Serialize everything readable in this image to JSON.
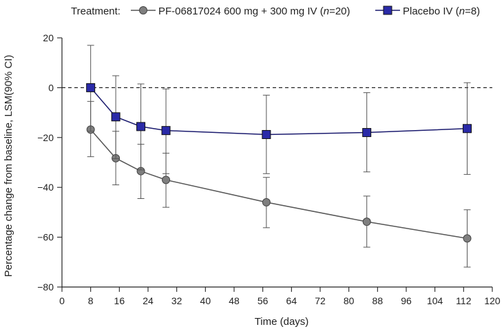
{
  "chart_data": {
    "type": "line",
    "title": "",
    "xlabel": "Time (days)",
    "ylabel": "Percentage change from baseline, LSM(90% CI)",
    "xlim": [
      0,
      120
    ],
    "ylim": [
      -80,
      20
    ],
    "xticks": [
      0,
      8,
      16,
      24,
      32,
      40,
      48,
      56,
      64,
      72,
      80,
      88,
      96,
      104,
      112,
      120
    ],
    "yticks": [
      20,
      0,
      -20,
      -40,
      -60,
      -80
    ],
    "reference_line": {
      "y": 0,
      "style": "dashed"
    },
    "legend": {
      "title": "Treatment:",
      "placement": "top",
      "entries": [
        {
          "prefix": "PF-06817024 600 mg + 300 mg IV (",
          "n_label": "n",
          "suffix": "=20)"
        },
        {
          "prefix": "Placebo IV (",
          "n_label": "n",
          "suffix": "=8)"
        }
      ]
    },
    "series": [
      {
        "name": "PF-06817024 600 mg + 300 mg IV (n=20)",
        "marker": "circle",
        "color": "#7f7f7f",
        "line_color": "#555555",
        "x": [
          8,
          15,
          22,
          29,
          57,
          85,
          113
        ],
        "y": [
          -16.8,
          -28.3,
          -33.5,
          -37.0,
          -46.0,
          -53.8,
          -60.5
        ],
        "err_low": [
          -27.7,
          -39.0,
          -44.5,
          -48.0,
          -56.2,
          -64.0,
          -72.0
        ],
        "err_high": [
          -5.5,
          -17.5,
          -22.7,
          -26.3,
          -36.0,
          -43.5,
          -49.0
        ]
      },
      {
        "name": "Placebo IV (n=8)",
        "marker": "square",
        "color": "#2a2aa8",
        "line_color": "#1a1a6e",
        "x": [
          8,
          15,
          22,
          29,
          57,
          85,
          113
        ],
        "y": [
          0,
          -11.7,
          -15.6,
          -17.2,
          -18.8,
          -18.0,
          -16.4
        ],
        "err_low": [
          -17.5,
          -28.5,
          -33.0,
          -34.5,
          -34.5,
          -33.8,
          -34.8
        ],
        "err_high": [
          17.0,
          4.8,
          1.5,
          -0.5,
          -3.0,
          -2.0,
          2.0
        ]
      }
    ]
  }
}
